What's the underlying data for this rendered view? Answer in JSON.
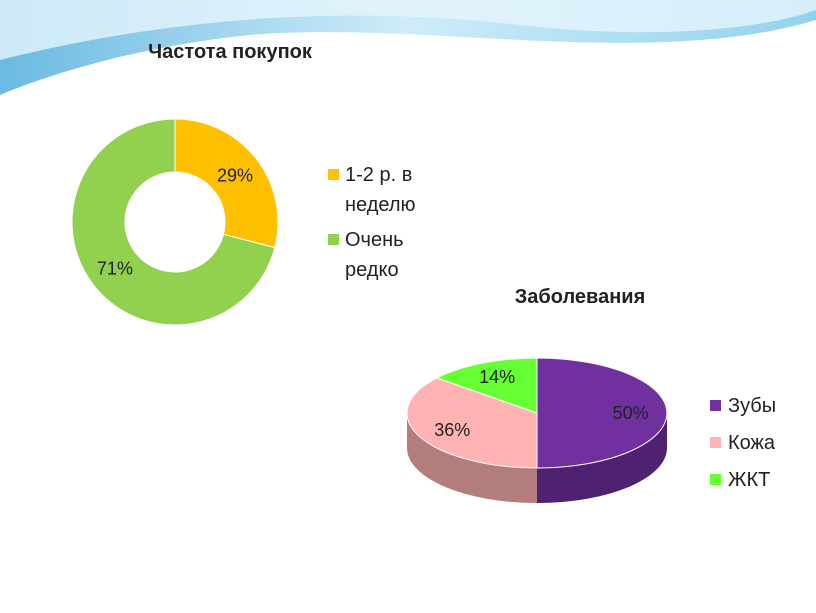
{
  "chart_data": [
    {
      "type": "donut",
      "title": "Частота покупок",
      "categories": [
        "1-2 р. в неделю",
        "Очень редко"
      ],
      "values": [
        29,
        71
      ],
      "value_labels": [
        "29%",
        "71%"
      ],
      "colors": [
        "#ffc000",
        "#92d050"
      ]
    },
    {
      "type": "pie3d",
      "title": "Заболевания",
      "categories": [
        "Зубы",
        "Кожа",
        "ЖКТ"
      ],
      "values": [
        50,
        36,
        14
      ],
      "value_labels": [
        "50%",
        "36%",
        "14%"
      ],
      "colors": [
        "#7030a0",
        "#ffb3b3",
        "#66ff33"
      ]
    }
  ]
}
